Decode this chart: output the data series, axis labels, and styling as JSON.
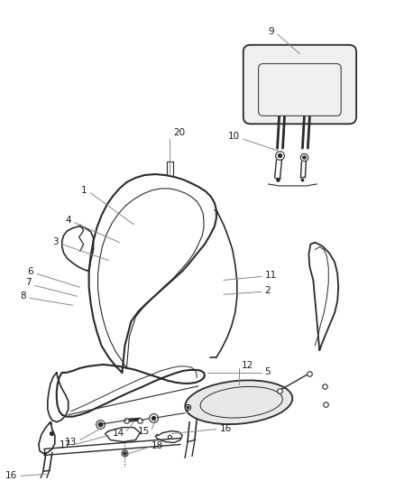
{
  "bg_color": "#ffffff",
  "line_color": "#2a2a2a",
  "callout_color": "#888888",
  "label_color": "#1a1a1a",
  "font_size": 7.5,
  "fig_w": 4.38,
  "fig_h": 5.33,
  "dpi": 100
}
